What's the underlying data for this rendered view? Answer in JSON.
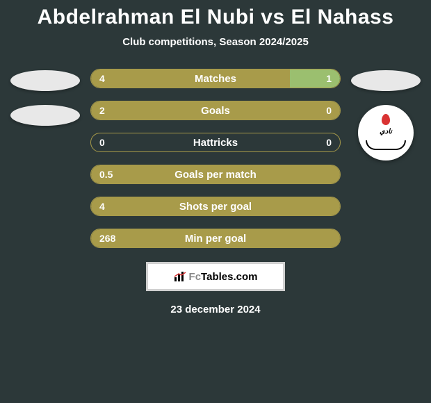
{
  "title": "Abdelrahman El Nubi vs El Nahass",
  "subtitle": "Club competitions, Season 2024/2025",
  "date": "23 december 2024",
  "logo_text": "FcTables.com",
  "badge_label": "نادي",
  "stats": [
    {
      "label": "Matches",
      "left_val": "4",
      "right_val": "1",
      "left_pct": 80,
      "right_pct": 20
    },
    {
      "label": "Goals",
      "left_val": "2",
      "right_val": "0",
      "left_pct": 100,
      "right_pct": 0
    },
    {
      "label": "Hattricks",
      "left_val": "0",
      "right_val": "0",
      "left_pct": 0,
      "right_pct": 0
    },
    {
      "label": "Goals per match",
      "left_val": "0.5",
      "right_val": "",
      "left_pct": 100,
      "right_pct": 0
    },
    {
      "label": "Shots per goal",
      "left_val": "4",
      "right_val": "",
      "left_pct": 100,
      "right_pct": 0
    },
    {
      "label": "Min per goal",
      "left_val": "268",
      "right_val": "",
      "left_pct": 100,
      "right_pct": 0
    }
  ],
  "colors": {
    "bar_left": "#a89b4a",
    "bar_right": "#9bbf6f",
    "bar_border": "#a89b4a",
    "background": "#2c3839",
    "oval": "#e8e8e8"
  }
}
